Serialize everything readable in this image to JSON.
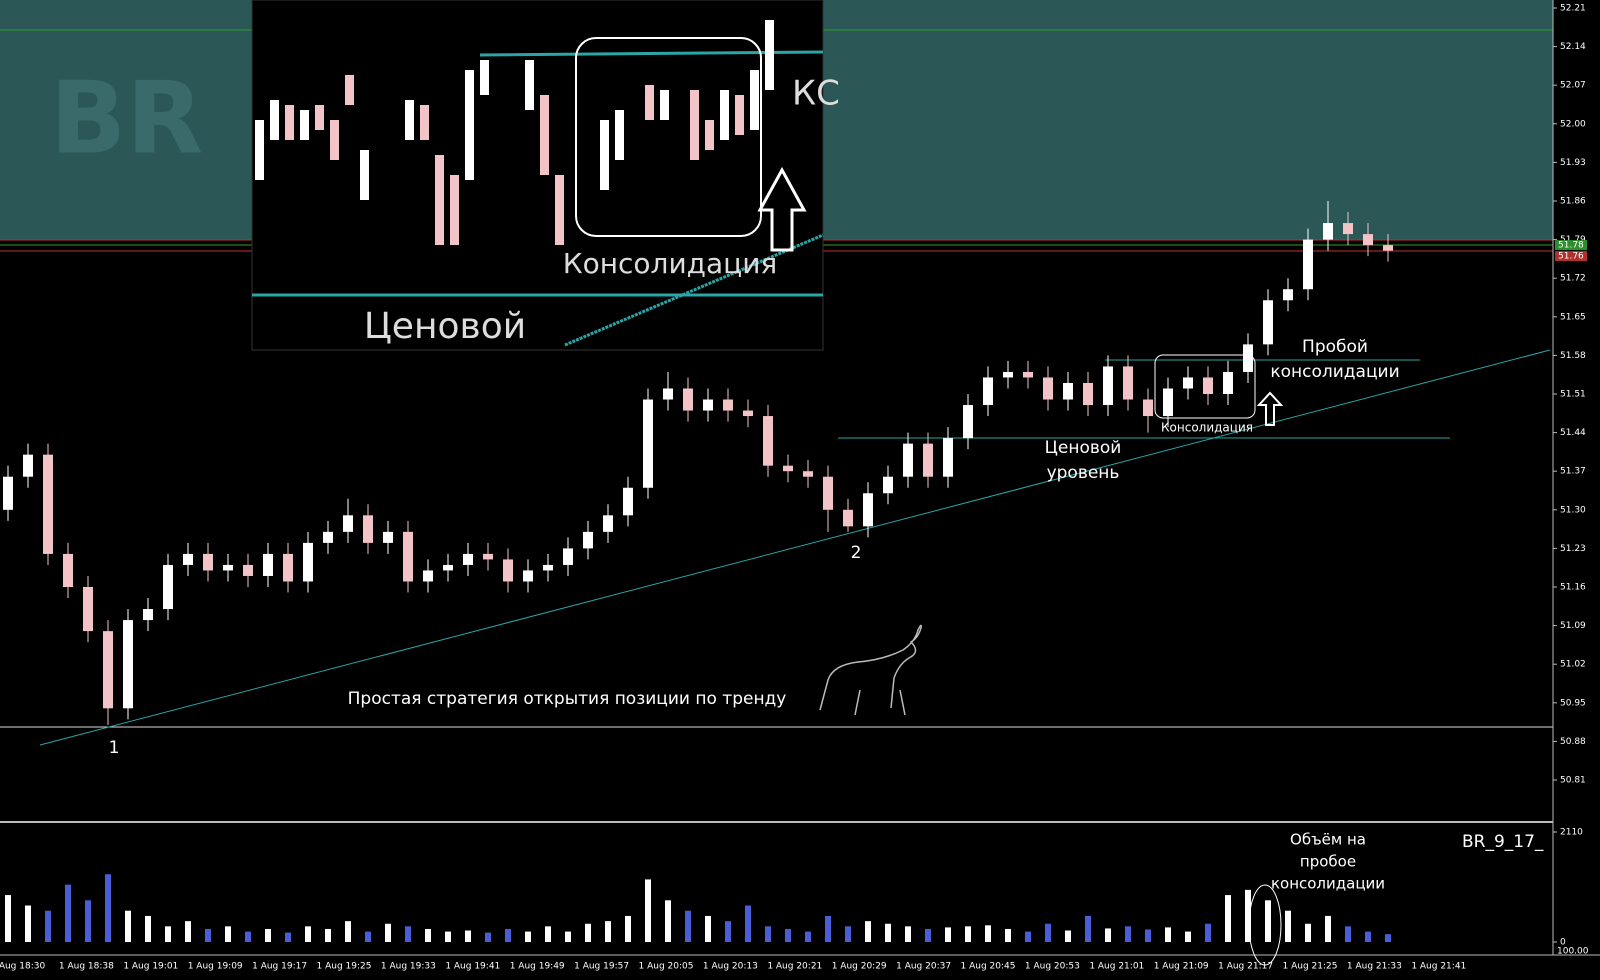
{
  "watermark": "BR",
  "inset": {
    "consolidation": "Консолидация",
    "price": "Ценовой",
    "cut_text": "КС"
  },
  "annotations": {
    "breakout": [
      "Пробой",
      "консолидации"
    ],
    "consolidation": "Консолидация",
    "price_level": [
      "Ценовой",
      "уровень"
    ],
    "point1": "1",
    "point2": "2",
    "strategy": "Простая стратегия открытия позиции по тренду",
    "volume_note": [
      "Объём на",
      "пробое",
      "консолидации"
    ]
  },
  "chart_data": {
    "type": "candlestick",
    "symbol": "BR_9_17_",
    "up_color": "#ffffff",
    "down_color": "#f2c4c8",
    "volume_up_color": "#ffffff",
    "volume_down_color": "#4a5fd6",
    "ylim": [
      50.81,
      52.21
    ],
    "yticks": [
      {
        "value": 52.21,
        "label": "52.21"
      },
      {
        "value": 52.14,
        "label": "52.14"
      },
      {
        "value": 52.07,
        "label": "52.07"
      },
      {
        "value": 52,
        "label": "52.00"
      },
      {
        "value": 51.93,
        "label": "51.93"
      },
      {
        "value": 51.86,
        "label": "51.86"
      },
      {
        "value": 51.79,
        "label": "51.79"
      },
      {
        "value": 51.72,
        "label": "51.72"
      },
      {
        "value": 51.65,
        "label": "51.65"
      },
      {
        "value": 51.58,
        "label": "51.58"
      },
      {
        "value": 51.51,
        "label": "51.51"
      },
      {
        "value": 51.44,
        "label": "51.44"
      },
      {
        "value": 51.37,
        "label": "51.37"
      },
      {
        "value": 51.3,
        "label": "51.30"
      },
      {
        "value": 51.23,
        "label": "51.23"
      },
      {
        "value": 51.16,
        "label": "51.16"
      },
      {
        "value": 51.09,
        "label": "51.09"
      },
      {
        "value": 51.02,
        "label": "51.02"
      },
      {
        "value": 50.95,
        "label": "50.95"
      },
      {
        "value": 50.88,
        "label": "50.88"
      },
      {
        "value": 50.81,
        "label": "50.81"
      }
    ],
    "price_tags": [
      51.78,
      51.76
    ],
    "time_labels": [
      "Aug 18:30",
      "1 Aug 18:38",
      "1 Aug 19:01",
      "1 Aug 19:09",
      "1 Aug 19:17",
      "1 Aug 19:25",
      "1 Aug 19:33",
      "1 Aug 19:41",
      "1 Aug 19:49",
      "1 Aug 19:57",
      "1 Aug 20:05",
      "1 Aug 20:13",
      "1 Aug 20:21",
      "1 Aug 20:29",
      "1 Aug 20:37",
      "1 Aug 20:45",
      "1 Aug 20:53",
      "1 Aug 21:01",
      "1 Aug 21:09",
      "1 Aug 21:17",
      "1 Aug 21:25",
      "1 Aug 21:33",
      "1 Aug 21:41"
    ],
    "open": [
      51.3,
      51.36,
      51.4,
      51.22,
      51.16,
      51.08,
      50.94,
      51.1,
      51.12,
      51.2,
      51.22,
      51.19,
      51.2,
      51.18,
      51.22,
      51.17,
      51.24,
      51.26,
      51.29,
      51.24,
      51.26,
      51.17,
      51.19,
      51.2,
      51.22,
      51.21,
      51.17,
      51.19,
      51.2,
      51.23,
      51.26,
      51.29,
      51.34,
      51.5,
      51.52,
      51.48,
      51.5,
      51.48,
      51.47,
      51.38,
      51.37,
      51.36,
      51.3,
      51.27,
      51.33,
      51.36,
      51.42,
      51.36,
      51.43,
      51.49,
      51.54,
      51.55,
      51.54,
      51.5,
      51.53,
      51.49,
      51.56,
      51.5,
      51.47,
      51.52,
      51.54,
      51.51,
      51.55,
      51.6,
      51.68,
      51.7,
      51.79,
      51.82,
      51.8,
      51.78
    ],
    "high": [
      51.38,
      51.42,
      51.42,
      51.24,
      51.18,
      51.1,
      51.12,
      51.14,
      51.22,
      51.24,
      51.24,
      51.22,
      51.22,
      51.24,
      51.24,
      51.26,
      51.28,
      51.32,
      51.31,
      51.28,
      51.28,
      51.21,
      51.22,
      51.24,
      51.24,
      51.23,
      51.21,
      51.22,
      51.25,
      51.28,
      51.31,
      51.36,
      51.52,
      51.55,
      51.54,
      51.52,
      51.52,
      51.5,
      51.49,
      51.4,
      51.39,
      51.38,
      51.32,
      51.35,
      51.38,
      51.44,
      51.44,
      51.45,
      51.51,
      51.56,
      51.57,
      51.57,
      51.56,
      51.55,
      51.55,
      51.58,
      51.58,
      51.52,
      51.54,
      51.56,
      51.56,
      51.57,
      51.62,
      51.7,
      51.72,
      51.81,
      51.86,
      51.84,
      51.82,
      51.8
    ],
    "low": [
      51.28,
      51.34,
      51.2,
      51.14,
      51.06,
      50.91,
      50.92,
      51.08,
      51.1,
      51.18,
      51.17,
      51.17,
      51.16,
      51.16,
      51.15,
      51.15,
      51.22,
      51.24,
      51.22,
      51.22,
      51.15,
      51.15,
      51.17,
      51.18,
      51.19,
      51.15,
      51.15,
      51.17,
      51.18,
      51.21,
      51.24,
      51.27,
      51.32,
      51.48,
      51.46,
      51.46,
      51.46,
      51.45,
      51.36,
      51.35,
      51.34,
      51.26,
      51.26,
      51.25,
      51.31,
      51.34,
      51.34,
      51.34,
      51.41,
      51.47,
      51.52,
      51.52,
      51.48,
      51.48,
      51.47,
      51.47,
      51.48,
      51.44,
      51.45,
      51.5,
      51.49,
      51.49,
      51.53,
      51.58,
      51.66,
      51.68,
      51.77,
      51.78,
      51.76,
      51.75
    ],
    "close": [
      51.36,
      51.4,
      51.22,
      51.16,
      51.08,
      50.94,
      51.1,
      51.12,
      51.2,
      51.22,
      51.19,
      51.2,
      51.18,
      51.22,
      51.17,
      51.24,
      51.26,
      51.29,
      51.24,
      51.26,
      51.17,
      51.19,
      51.2,
      51.22,
      51.21,
      51.17,
      51.19,
      51.2,
      51.23,
      51.26,
      51.29,
      51.34,
      51.5,
      51.52,
      51.48,
      51.5,
      51.48,
      51.47,
      51.38,
      51.37,
      51.36,
      51.3,
      51.27,
      51.33,
      51.36,
      51.42,
      51.36,
      51.43,
      51.49,
      51.54,
      51.55,
      51.54,
      51.5,
      51.53,
      51.49,
      51.56,
      51.5,
      51.47,
      51.52,
      51.54,
      51.51,
      51.55,
      51.6,
      51.68,
      51.7,
      51.79,
      51.82,
      51.8,
      51.78,
      51.77
    ],
    "volume": [
      900,
      700,
      600,
      1100,
      800,
      1300,
      600,
      500,
      300,
      400,
      250,
      300,
      200,
      250,
      180,
      300,
      250,
      400,
      200,
      350,
      300,
      250,
      200,
      220,
      180,
      250,
      200,
      300,
      200,
      350,
      400,
      500,
      1200,
      800,
      600,
      500,
      400,
      700,
      300,
      250,
      200,
      500,
      300,
      400,
      350,
      300,
      250,
      280,
      300,
      320,
      250,
      200,
      350,
      220,
      500,
      260,
      300,
      240,
      280,
      200,
      350,
      900,
      1000,
      800,
      600,
      350,
      500,
      300,
      200,
      150
    ],
    "volume_ylim": [
      0,
      2110
    ],
    "volume_yticks": [
      2110,
      0
    ],
    "volume_scale_label": "100.00"
  }
}
